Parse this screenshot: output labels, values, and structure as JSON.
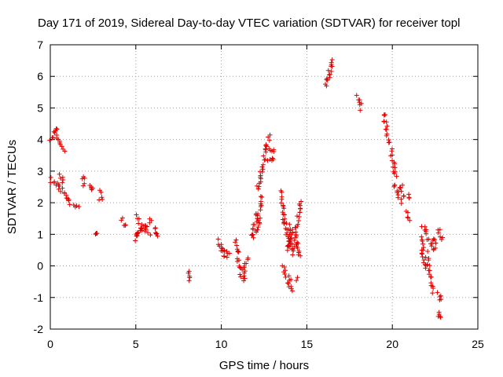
{
  "chart_data": {
    "type": "scatter",
    "title": "Day 171 of 2019, Sidereal Day-to-day VTEC variation (SDTVAR) for receiver topl",
    "xlabel": "GPS time / hours",
    "ylabel": "SDTVAR / TECUs",
    "xlim": [
      0,
      25
    ],
    "ylim": [
      -2,
      7
    ],
    "xticks": [
      0,
      5,
      10,
      15,
      20,
      25
    ],
    "yticks": [
      -2,
      -1,
      0,
      1,
      2,
      3,
      4,
      5,
      6,
      7
    ],
    "grid": true,
    "marker": "plus",
    "color": "#e00000",
    "segments": [
      {
        "x0": 0.05,
        "x1": 0.3,
        "y0": 4.0,
        "y1": 4.3
      },
      {
        "x0": 0.3,
        "x1": 0.8,
        "y0": 4.3,
        "y1": 3.6
      },
      {
        "x0": 0.0,
        "x1": 0.5,
        "y0": 2.75,
        "y1": 2.45
      },
      {
        "x0": 0.5,
        "x1": 1.0,
        "y0": 2.6,
        "y1": 2.1
      },
      {
        "x0": 1.0,
        "x1": 1.6,
        "y0": 2.1,
        "y1": 1.85
      },
      {
        "x0": 0.6,
        "x1": 0.75,
        "y0": 2.85,
        "y1": 2.6
      },
      {
        "x0": 1.85,
        "x1": 1.95,
        "y0": 2.78,
        "y1": 2.75
      },
      {
        "x0": 1.9,
        "x1": 1.9,
        "y0": 2.55,
        "y1": 2.55
      },
      {
        "x0": 2.4,
        "x1": 2.45,
        "y0": 2.62,
        "y1": 2.4
      },
      {
        "x0": 2.9,
        "x1": 2.95,
        "y0": 2.35,
        "y1": 2.1
      },
      {
        "x0": 2.65,
        "x1": 2.7,
        "y0": 1.05,
        "y1": 1.02
      },
      {
        "x0": 4.15,
        "x1": 4.4,
        "y0": 1.45,
        "y1": 1.25
      },
      {
        "x0": 4.9,
        "x1": 5.3,
        "y0": 0.85,
        "y1": 1.2
      },
      {
        "x0": 5.0,
        "x1": 5.8,
        "y0": 1.55,
        "y1": 1.0
      },
      {
        "x0": 5.1,
        "x1": 5.9,
        "y0": 0.95,
        "y1": 1.5
      },
      {
        "x0": 6.2,
        "x1": 6.25,
        "y0": 1.2,
        "y1": 0.9
      },
      {
        "x0": 8.05,
        "x1": 8.1,
        "y0": -0.15,
        "y1": -0.4
      },
      {
        "x0": 9.8,
        "x1": 10.3,
        "y0": 0.8,
        "y1": 0.25
      },
      {
        "x0": 10.0,
        "x1": 10.5,
        "y0": 0.55,
        "y1": 0.35
      },
      {
        "x0": 10.8,
        "x1": 11.0,
        "y0": 0.75,
        "y1": 0.4
      },
      {
        "x0": 10.9,
        "x1": 11.3,
        "y0": 0.2,
        "y1": -0.45
      },
      {
        "x0": 11.3,
        "x1": 11.5,
        "y0": -0.4,
        "y1": 0.25
      },
      {
        "x0": 11.8,
        "x1": 12.1,
        "y0": 0.85,
        "y1": 1.7
      },
      {
        "x0": 12.1,
        "x1": 12.3,
        "y0": 1.0,
        "y1": 2.2
      },
      {
        "x0": 12.1,
        "x1": 12.5,
        "y0": 2.4,
        "y1": 3.3
      },
      {
        "x0": 12.5,
        "x1": 12.8,
        "y0": 3.4,
        "y1": 4.1
      },
      {
        "x0": 12.7,
        "x1": 13.1,
        "y0": 3.7,
        "y1": 3.65
      },
      {
        "x0": 12.7,
        "x1": 13.1,
        "y0": 3.4,
        "y1": 3.4
      },
      {
        "x0": 13.55,
        "x1": 13.7,
        "y0": 2.35,
        "y1": 1.3
      },
      {
        "x0": 13.6,
        "x1": 14.0,
        "y0": 0.0,
        "y1": -0.5
      },
      {
        "x0": 13.9,
        "x1": 14.2,
        "y0": -0.5,
        "y1": -0.75
      },
      {
        "x0": 13.7,
        "x1": 14.1,
        "y0": 1.4,
        "y1": 0.6
      },
      {
        "x0": 13.8,
        "x1": 14.3,
        "y0": 0.5,
        "y1": 1.2
      },
      {
        "x0": 14.0,
        "x1": 14.2,
        "y0": 1.3,
        "y1": 0.4
      },
      {
        "x0": 14.3,
        "x1": 14.6,
        "y0": 0.6,
        "y1": 2.1
      },
      {
        "x0": 14.4,
        "x1": 14.6,
        "y0": 0.75,
        "y1": 0.3
      },
      {
        "x0": 14.4,
        "x1": 14.4,
        "y0": -0.4,
        "y1": -0.4
      },
      {
        "x0": 16.1,
        "x1": 16.3,
        "y0": 5.7,
        "y1": 6.0
      },
      {
        "x0": 16.3,
        "x1": 16.45,
        "y0": 6.0,
        "y1": 6.55
      },
      {
        "x0": 18.0,
        "x1": 18.2,
        "y0": 5.35,
        "y1": 5.0
      },
      {
        "x0": 19.5,
        "x1": 19.8,
        "y0": 4.85,
        "y1": 3.9
      },
      {
        "x0": 19.9,
        "x1": 20.2,
        "y0": 3.7,
        "y1": 2.8
      },
      {
        "x0": 20.1,
        "x1": 20.5,
        "y0": 2.6,
        "y1": 2.0
      },
      {
        "x0": 20.5,
        "x1": 20.6,
        "y0": 2.6,
        "y1": 2.2
      },
      {
        "x0": 20.9,
        "x1": 21.0,
        "y0": 2.2,
        "y1": 2.1
      },
      {
        "x0": 20.9,
        "x1": 21.0,
        "y0": 1.7,
        "y1": 1.45
      },
      {
        "x0": 21.7,
        "x1": 21.9,
        "y0": 0.9,
        "y1": -0.1
      },
      {
        "x0": 21.8,
        "x1": 22.3,
        "y0": 1.3,
        "y1": 0.6
      },
      {
        "x0": 22.0,
        "x1": 22.4,
        "y0": 0.4,
        "y1": -0.8
      },
      {
        "x0": 22.4,
        "x1": 22.5,
        "y0": 0.9,
        "y1": 0.5
      },
      {
        "x0": 22.7,
        "x1": 22.9,
        "y0": 1.15,
        "y1": 0.85
      },
      {
        "x0": 22.7,
        "x1": 22.9,
        "y0": -0.9,
        "y1": -1.1
      },
      {
        "x0": 22.75,
        "x1": 22.8,
        "y0": -1.4,
        "y1": -1.65
      }
    ]
  }
}
